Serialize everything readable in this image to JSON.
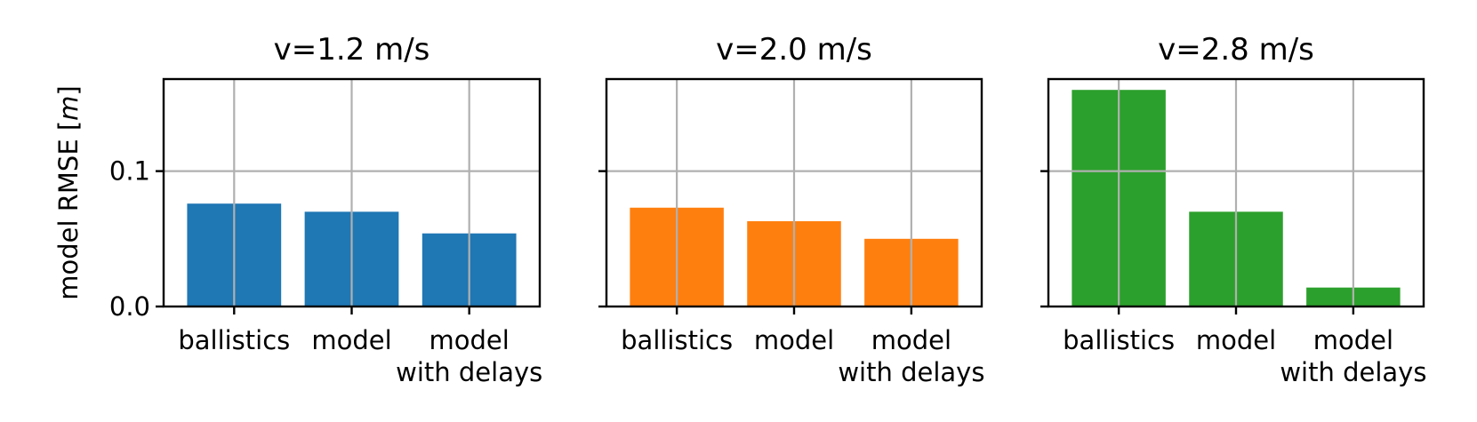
{
  "chart_data": [
    {
      "type": "bar",
      "title": "v=1.2 m/s",
      "categories": [
        "ballistics",
        "model",
        "model\nwith delays"
      ],
      "values": [
        0.076,
        0.07,
        0.054
      ],
      "color": "#1f77b4",
      "ylabel": "model RMSE [m]",
      "ylim": [
        0,
        0.168
      ],
      "yticks": [
        0.0,
        0.1
      ],
      "ytick_labels": [
        "0.0",
        "0.1"
      ],
      "grid": true
    },
    {
      "type": "bar",
      "title": "v=2.0 m/s",
      "categories": [
        "ballistics",
        "model",
        "model\nwith delays"
      ],
      "values": [
        0.073,
        0.063,
        0.05
      ],
      "color": "#ff7f0e",
      "ylabel": "",
      "ylim": [
        0,
        0.168
      ],
      "yticks": [
        0.0,
        0.1
      ],
      "ytick_labels": [],
      "grid": true
    },
    {
      "type": "bar",
      "title": "v=2.8 m/s",
      "categories": [
        "ballistics",
        "model",
        "model\nwith delays"
      ],
      "values": [
        0.16,
        0.07,
        0.014
      ],
      "color": "#2ca02c",
      "ylabel": "",
      "ylim": [
        0,
        0.168
      ],
      "yticks": [
        0.0,
        0.1
      ],
      "ytick_labels": [],
      "grid": true
    }
  ]
}
